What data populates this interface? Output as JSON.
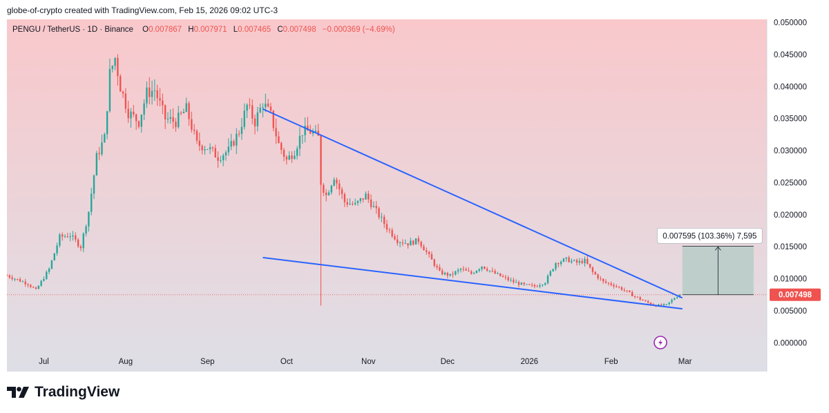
{
  "credit": "globe-of-crypto created with TradingView.com, Feb 15, 2026 09:02 UTC-3",
  "brand": "TradingView",
  "colors": {
    "up": "#26a69a",
    "down": "#ef5350",
    "trendline": "#2962ff",
    "target_box": "#a9c9c0",
    "bg_top": "#f9c8cb",
    "bg_bottom": "#dedfe6",
    "lightning": "#9c27b0"
  },
  "chart_data": {
    "type": "candlestick",
    "title": "PENGU / TetherUS · 1D · Binance",
    "ohlc": {
      "o_label": "O",
      "o": "0.007867",
      "h_label": "H",
      "h": "0.007971",
      "l_label": "L",
      "l": "0.007465",
      "c_label": "C",
      "c": "0.007498",
      "change": "−0.000369 (−4.69%)"
    },
    "y_ticks": [
      "0.050000",
      "0.045000",
      "0.040000",
      "0.035000",
      "0.030000",
      "0.025000",
      "0.020000",
      "0.015000",
      "0.010000",
      "0.005000",
      "0.000000"
    ],
    "y_tick_values": [
      0.05,
      0.045,
      0.04,
      0.035,
      0.03,
      0.025,
      0.02,
      0.015,
      0.01,
      0.005,
      0
    ],
    "ylim": [
      -0.0045,
      0.0505
    ],
    "x_ticks": [
      {
        "label": "Jul",
        "day": 8
      },
      {
        "label": "Aug",
        "day": 39
      },
      {
        "label": "Sep",
        "day": 70
      },
      {
        "label": "Oct",
        "day": 100
      },
      {
        "label": "Nov",
        "day": 131
      },
      {
        "label": "Dec",
        "day": 161
      },
      {
        "label": "2026",
        "day": 192
      },
      {
        "label": "Feb",
        "day": 223
      },
      {
        "label": "Mar",
        "day": 251
      }
    ],
    "xlim": [
      -6,
      282
    ],
    "last_price_label": "0.007498",
    "last_price": 0.007498,
    "price_path": [
      [
        -6,
        0.0105
      ],
      [
        2,
        0.0092
      ],
      [
        5,
        0.0082
      ],
      [
        10,
        0.0115
      ],
      [
        14,
        0.0165
      ],
      [
        18,
        0.0168
      ],
      [
        22,
        0.015
      ],
      [
        25,
        0.0205
      ],
      [
        28,
        0.029
      ],
      [
        31,
        0.032
      ],
      [
        33,
        0.042
      ],
      [
        35,
        0.0445
      ],
      [
        37,
        0.04
      ],
      [
        40,
        0.036
      ],
      [
        44,
        0.0345
      ],
      [
        47,
        0.039
      ],
      [
        50,
        0.0395
      ],
      [
        54,
        0.035
      ],
      [
        58,
        0.0345
      ],
      [
        62,
        0.0365
      ],
      [
        66,
        0.031
      ],
      [
        70,
        0.0305
      ],
      [
        74,
        0.029
      ],
      [
        78,
        0.03
      ],
      [
        82,
        0.033
      ],
      [
        85,
        0.037
      ],
      [
        88,
        0.0345
      ],
      [
        91,
        0.0375
      ],
      [
        94,
        0.0355
      ],
      [
        97,
        0.031
      ],
      [
        100,
        0.0285
      ],
      [
        103,
        0.03
      ],
      [
        106,
        0.033
      ],
      [
        109,
        0.033
      ],
      [
        112,
        0.032
      ],
      [
        113,
        0.025
      ],
      [
        115,
        0.023
      ],
      [
        118,
        0.026
      ],
      [
        122,
        0.022
      ],
      [
        126,
        0.0215
      ],
      [
        130,
        0.023
      ],
      [
        134,
        0.0205
      ],
      [
        138,
        0.018
      ],
      [
        142,
        0.016
      ],
      [
        146,
        0.0155
      ],
      [
        150,
        0.016
      ],
      [
        154,
        0.0135
      ],
      [
        158,
        0.011
      ],
      [
        162,
        0.0105
      ],
      [
        166,
        0.0115
      ],
      [
        170,
        0.0108
      ],
      [
        174,
        0.012
      ],
      [
        178,
        0.011
      ],
      [
        182,
        0.0102
      ],
      [
        186,
        0.0095
      ],
      [
        190,
        0.009
      ],
      [
        194,
        0.0088
      ],
      [
        198,
        0.0095
      ],
      [
        202,
        0.0125
      ],
      [
        206,
        0.013
      ],
      [
        210,
        0.0125
      ],
      [
        213,
        0.0128
      ],
      [
        216,
        0.011
      ],
      [
        220,
        0.0095
      ],
      [
        224,
        0.009
      ],
      [
        228,
        0.0082
      ],
      [
        232,
        0.0072
      ],
      [
        236,
        0.0064
      ],
      [
        240,
        0.0058
      ],
      [
        244,
        0.0059
      ],
      [
        247,
        0.007
      ],
      [
        249,
        0.0075
      ]
    ],
    "annotations": {
      "upper_trendline": [
        [
          91,
          0.0365
        ],
        [
          250,
          0.007
        ]
      ],
      "lower_trendline": [
        [
          91,
          0.0133
        ],
        [
          250,
          0.0053
        ]
      ],
      "target_box": {
        "x0": 250,
        "x1": 277,
        "y0": 0.0075,
        "y1": 0.01509
      },
      "measure_label": "0.007595 (103.36%) 7,595",
      "wick_spike": {
        "day": 113,
        "low": 0.0058
      }
    }
  }
}
